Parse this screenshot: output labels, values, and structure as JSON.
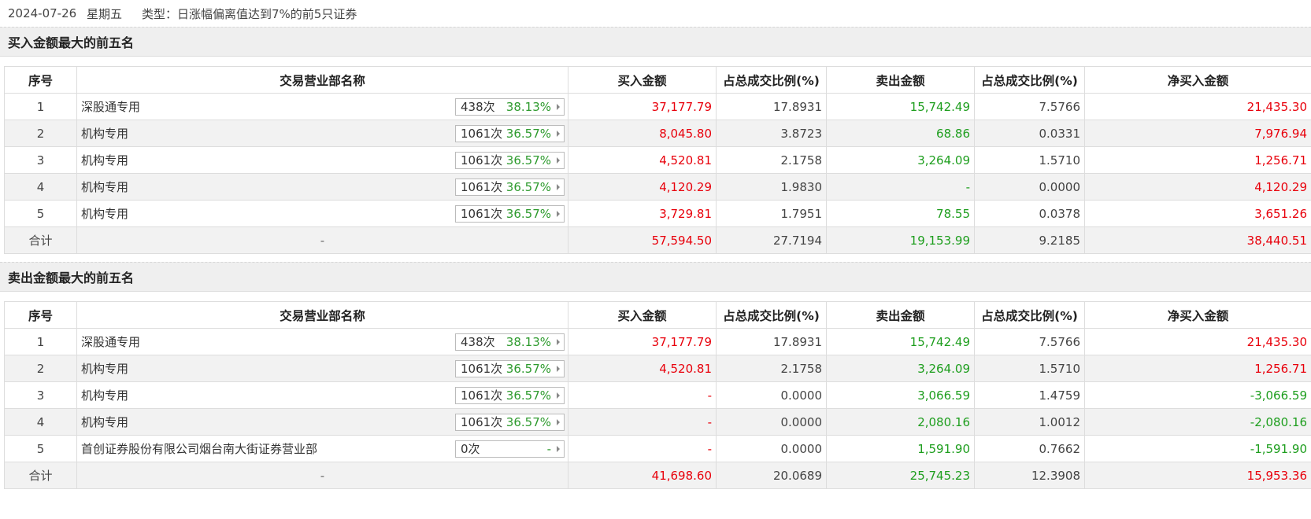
{
  "header": {
    "date": "2024-07-26",
    "weekday": "星期五",
    "type_text": "类型：日涨幅偏离值达到7%的前5只证券"
  },
  "colors": {
    "positive": "#e8000b",
    "negative": "#1e9e1e",
    "header_bg": "#efefef"
  },
  "columns": [
    "序号",
    "交易营业部名称",
    "买入金额",
    "占总成交比例(%)",
    "卖出金额",
    "占总成交比例(%)",
    "净买入金额"
  ],
  "buy_top5": {
    "title": "买入金额最大的前五名",
    "rows": [
      {
        "idx": "1",
        "name": "深股通专用",
        "times": "438次",
        "rate": "38.13%",
        "buy": "37,177.79",
        "buy_pct": "17.8931",
        "sell": "15,742.49",
        "sell_pct": "7.5766",
        "net": "21,435.30"
      },
      {
        "idx": "2",
        "name": "机构专用",
        "times": "1061次",
        "rate": "36.57%",
        "buy": "8,045.80",
        "buy_pct": "3.8723",
        "sell": "68.86",
        "sell_pct": "0.0331",
        "net": "7,976.94"
      },
      {
        "idx": "3",
        "name": "机构专用",
        "times": "1061次",
        "rate": "36.57%",
        "buy": "4,520.81",
        "buy_pct": "2.1758",
        "sell": "3,264.09",
        "sell_pct": "1.5710",
        "net": "1,256.71"
      },
      {
        "idx": "4",
        "name": "机构专用",
        "times": "1061次",
        "rate": "36.57%",
        "buy": "4,120.29",
        "buy_pct": "1.9830",
        "sell": "-",
        "sell_pct": "0.0000",
        "net": "4,120.29"
      },
      {
        "idx": "5",
        "name": "机构专用",
        "times": "1061次",
        "rate": "36.57%",
        "buy": "3,729.81",
        "buy_pct": "1.7951",
        "sell": "78.55",
        "sell_pct": "0.0378",
        "net": "3,651.26"
      }
    ],
    "total": {
      "label": "合计",
      "name": "-",
      "buy": "57,594.50",
      "buy_pct": "27.7194",
      "sell": "19,153.99",
      "sell_pct": "9.2185",
      "net": "38,440.51"
    }
  },
  "sell_top5": {
    "title": "卖出金额最大的前五名",
    "rows": [
      {
        "idx": "1",
        "name": "深股通专用",
        "times": "438次",
        "rate": "38.13%",
        "buy": "37,177.79",
        "buy_pct": "17.8931",
        "sell": "15,742.49",
        "sell_pct": "7.5766",
        "net": "21,435.30"
      },
      {
        "idx": "2",
        "name": "机构专用",
        "times": "1061次",
        "rate": "36.57%",
        "buy": "4,520.81",
        "buy_pct": "2.1758",
        "sell": "3,264.09",
        "sell_pct": "1.5710",
        "net": "1,256.71"
      },
      {
        "idx": "3",
        "name": "机构专用",
        "times": "1061次",
        "rate": "36.57%",
        "buy": "-",
        "buy_pct": "0.0000",
        "sell": "3,066.59",
        "sell_pct": "1.4759",
        "net": "-3,066.59"
      },
      {
        "idx": "4",
        "name": "机构专用",
        "times": "1061次",
        "rate": "36.57%",
        "buy": "-",
        "buy_pct": "0.0000",
        "sell": "2,080.16",
        "sell_pct": "1.0012",
        "net": "-2,080.16"
      },
      {
        "idx": "5",
        "name": "首创证券股份有限公司烟台南大街证券营业部",
        "times": "0次",
        "rate": "-",
        "buy": "-",
        "buy_pct": "0.0000",
        "sell": "1,591.90",
        "sell_pct": "0.7662",
        "net": "-1,591.90"
      }
    ],
    "total": {
      "label": "合计",
      "name": "-",
      "buy": "41,698.60",
      "buy_pct": "20.0689",
      "sell": "25,745.23",
      "sell_pct": "12.3908",
      "net": "15,953.36"
    }
  }
}
